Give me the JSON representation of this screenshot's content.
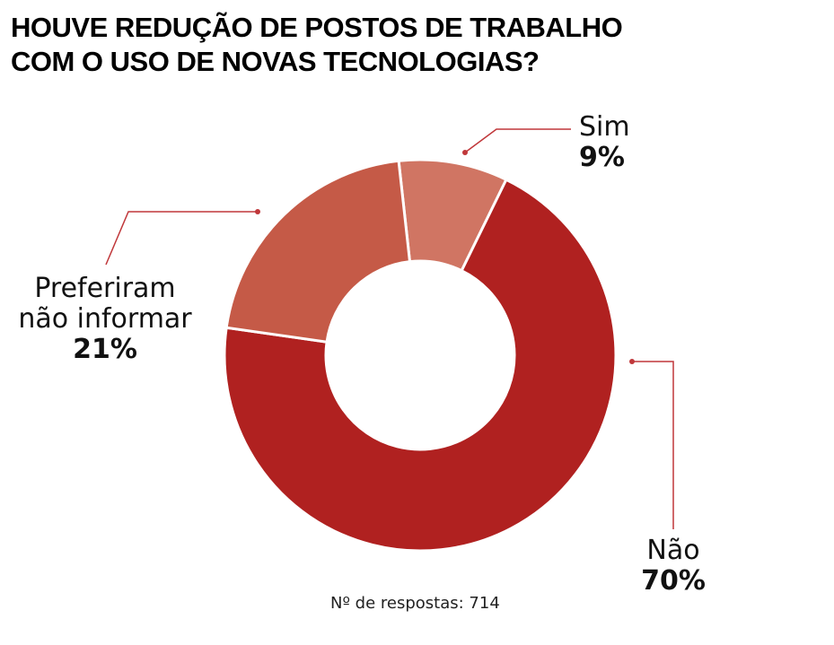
{
  "title": {
    "line1": "HOUVE REDUÇÃO DE POSTOS DE TRABALHO",
    "line2": "COM O USO DE NOVAS TECNOLOGIAS?"
  },
  "labels": {
    "sim": {
      "name": "Sim",
      "pct": "9%"
    },
    "pref": {
      "name_line1": "Preferiram",
      "name_line2": "não informar",
      "pct": "21%"
    },
    "nao": {
      "name": "Não",
      "pct": "70%"
    }
  },
  "footer": "Nº de respostas: 714",
  "colors": {
    "nao": "#b02120",
    "pref": "#c55a47",
    "sim": "#d07563",
    "leader": "#c0373a",
    "separator": "#ffffff"
  },
  "chart_data": {
    "type": "pie",
    "variant": "donut",
    "title": "HOUVE REDUÇÃO DE POSTOS DE TRABALHO COM O USO DE NOVAS TECNOLOGIAS?",
    "categories": [
      "Sim",
      "Não",
      "Preferiram não informar"
    ],
    "values": [
      9,
      70,
      21
    ],
    "unit": "%",
    "annotation": "Nº de respostas: 714",
    "legend": "none (direct labels with leader lines)"
  }
}
